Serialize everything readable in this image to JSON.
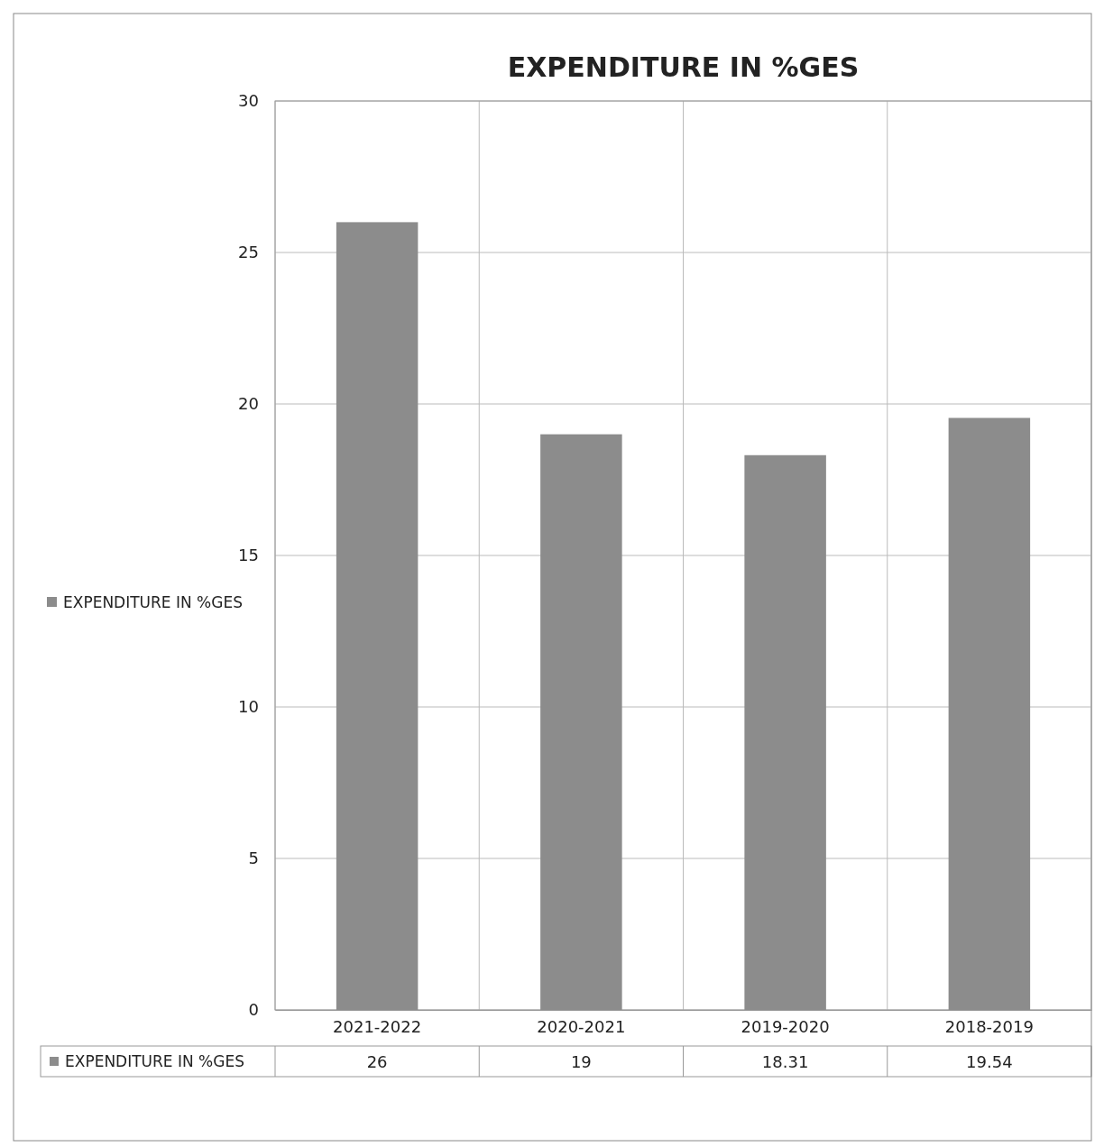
{
  "chart_data": {
    "type": "bar",
    "title": "EXPENDITURE IN %GES",
    "categories": [
      "2021-2022",
      "2020-2021",
      "2019-2020",
      "2018-2019"
    ],
    "series": [
      {
        "name": "EXPENDITURE IN %GES",
        "color": "#8c8c8c",
        "values": [
          26,
          19,
          18.31,
          19.54
        ]
      }
    ],
    "ylim": [
      0,
      30
    ],
    "yticks": [
      0,
      5,
      10,
      15,
      20,
      25,
      30
    ],
    "grid": true,
    "legend": "left",
    "data_labels": true
  }
}
